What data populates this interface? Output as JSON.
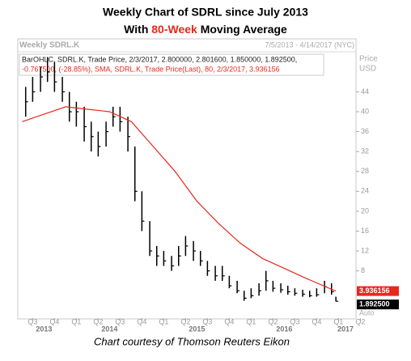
{
  "chart_data": {
    "type": "ohlc",
    "title": "Weekly Chart of SDRL since July 2013",
    "subtitle_parts": [
      "With ",
      "80-Week",
      " Moving Average"
    ],
    "panel_title": "Weekly SDRL.K",
    "date_range": "7/5/2013 - 4/14/2017 (NYC)",
    "info_line_1": "BarOHLC, SDRL.K, Trade Price, 2/3/2017, 2.800000, 2.801600, 1.850000, 1.892500,",
    "info_line_2": "-0.767500, (-28.85%), SMA, SDRL.K, Trade Price(Last), 80, 2/3/2017, 3.936156",
    "y_axis_label": [
      "Price",
      "USD"
    ],
    "auto_label": "Auto",
    "caption": "Chart courtesy of Thomson Reuters Eikon",
    "x": [
      2013.54,
      2013.62,
      2013.71,
      2013.79,
      2013.87,
      2013.96,
      2014.04,
      2014.12,
      2014.21,
      2014.29,
      2014.37,
      2014.46,
      2014.54,
      2014.62,
      2014.71,
      2014.79,
      2014.87,
      2014.96,
      2015.04,
      2015.12,
      2015.21,
      2015.29,
      2015.37,
      2015.46,
      2015.54,
      2015.62,
      2015.71,
      2015.79,
      2015.87,
      2015.96,
      2016.04,
      2016.12,
      2016.21,
      2016.29,
      2016.37,
      2016.46,
      2016.54,
      2016.62,
      2016.71,
      2016.79,
      2016.87,
      2016.96,
      2017.04,
      2017.09
    ],
    "series": [
      {
        "name": "BarOHLC",
        "color": "#000000",
        "high": [
          45,
          47,
          49,
          51,
          50,
          47,
          44,
          42,
          41,
          38,
          36,
          38,
          41,
          41,
          39,
          33,
          24,
          18,
          13,
          12,
          11,
          13,
          15,
          14,
          12,
          10,
          9,
          9,
          7,
          6,
          4,
          4.5,
          5.5,
          8,
          6,
          5.5,
          5,
          4.5,
          4.2,
          4,
          4.5,
          6,
          5.5,
          2.8016
        ],
        "low": [
          39,
          42,
          44,
          46,
          44,
          42,
          38,
          37,
          34,
          32,
          31,
          33,
          37,
          36,
          32,
          22,
          16,
          11,
          9,
          9,
          8,
          9,
          11,
          10,
          9,
          7,
          6,
          6,
          4.5,
          3.5,
          2,
          2.5,
          3,
          4,
          3.8,
          3.6,
          3.2,
          3,
          2.8,
          2.7,
          2.8,
          3.5,
          3.2,
          1.85
        ],
        "close": [
          42,
          44,
          47,
          48,
          46,
          44,
          40,
          40,
          37,
          35,
          33,
          36,
          39,
          38,
          35,
          24,
          18,
          12,
          11,
          10,
          9,
          11,
          13,
          12,
          10,
          8,
          7,
          7,
          5,
          4,
          2.5,
          3,
          4,
          6,
          4.5,
          4.2,
          3.8,
          3.5,
          3.3,
          3,
          3.2,
          4.8,
          3.8,
          1.8925
        ]
      },
      {
        "name": "SMA 80",
        "color": "#e8281e",
        "x": [
          2013.5,
          2013.75,
          2014.0,
          2014.25,
          2014.5,
          2014.75,
          2015.0,
          2015.25,
          2015.5,
          2015.75,
          2016.0,
          2016.25,
          2016.5,
          2016.75,
          2017.0,
          2017.09
        ],
        "values": [
          38,
          39.5,
          41,
          40.5,
          40,
          38,
          33,
          28,
          22,
          17.5,
          13.5,
          10.5,
          8.5,
          6.5,
          4.6,
          3.936156
        ]
      }
    ],
    "sma_last": {
      "value": 3.936156,
      "label": "3.936156"
    },
    "close_last": {
      "value": 1.8925,
      "label": "1.892500"
    },
    "ylim": [
      -1.5,
      51.4
    ],
    "yticks": [
      8,
      12,
      16,
      20,
      24,
      28,
      32,
      36,
      40,
      44
    ],
    "xlim": [
      2013.45,
      2017.32
    ],
    "xticks": [
      {
        "value": 2013.62,
        "label": "Q3"
      },
      {
        "value": 2013.87,
        "label": "Q4"
      },
      {
        "value": 2014.12,
        "label": "Q1"
      },
      {
        "value": 2014.37,
        "label": "Q2"
      },
      {
        "value": 2014.62,
        "label": "Q3"
      },
      {
        "value": 2014.87,
        "label": "Q4"
      },
      {
        "value": 2015.12,
        "label": "Q1"
      },
      {
        "value": 2015.37,
        "label": "Q2"
      },
      {
        "value": 2015.62,
        "label": "Q3"
      },
      {
        "value": 2015.87,
        "label": "Q4"
      },
      {
        "value": 2016.12,
        "label": "Q1"
      },
      {
        "value": 2016.37,
        "label": "Q2"
      },
      {
        "value": 2016.62,
        "label": "Q3"
      },
      {
        "value": 2016.87,
        "label": "Q4"
      },
      {
        "value": 2017.12,
        "label": "Q1"
      },
      {
        "value": 2017.37,
        "label": "Q2"
      }
    ],
    "year_ticks": [
      {
        "value": 2013.75,
        "label": "2013"
      },
      {
        "value": 2014.5,
        "label": "2014"
      },
      {
        "value": 2015.5,
        "label": "2015"
      },
      {
        "value": 2016.5,
        "label": "2016"
      },
      {
        "value": 2017.2,
        "label": "2017"
      }
    ],
    "grid": false
  }
}
